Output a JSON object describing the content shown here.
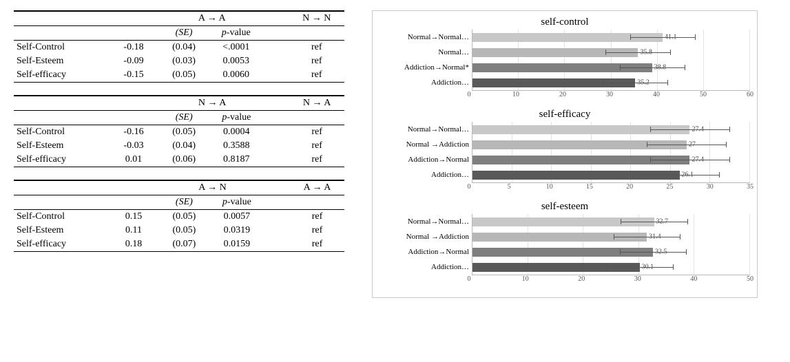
{
  "tables": [
    {
      "header_left": "A → A",
      "header_right": "N → N",
      "se_label": "(SE)",
      "p_label": "p-value",
      "ref_label": "ref",
      "rows": [
        {
          "name": "Self-Control",
          "coef": "-0.18",
          "se": "(0.04)",
          "p": "<.0001"
        },
        {
          "name": "Self-Esteem",
          "coef": "-0.09",
          "se": "(0.03)",
          "p": "0.0053"
        },
        {
          "name": "Self-efficacy",
          "coef": "-0.15",
          "se": "(0.05)",
          "p": "0.0060"
        }
      ]
    },
    {
      "header_left": "N → A",
      "header_right": "N → A",
      "se_label": "(SE)",
      "p_label": "p-value",
      "ref_label": "ref",
      "rows": [
        {
          "name": "Self-Control",
          "coef": "-0.16",
          "se": "(0.05)",
          "p": "0.0004"
        },
        {
          "name": "Self-Esteem",
          "coef": "-0.03",
          "se": "(0.04)",
          "p": "0.3588"
        },
        {
          "name": "Self-efficacy",
          "coef": " 0.01",
          "se": "(0.06)",
          "p": "0.8187"
        }
      ]
    },
    {
      "header_left": "A → N",
      "header_right": "A → A",
      "se_label": "(SE)",
      "p_label": "p-value",
      "ref_label": "ref",
      "rows": [
        {
          "name": "Self-Control",
          "coef": "0.15",
          "se": "(0.05)",
          "p": "0.0057"
        },
        {
          "name": "Self-Esteem",
          "coef": "0.11",
          "se": "(0.05)",
          "p": "0.0319"
        },
        {
          "name": "Self-efficacy",
          "coef": "0.18",
          "se": "(0.07)",
          "p": "0.0159"
        }
      ]
    }
  ],
  "charts": [
    {
      "title": "self-control",
      "xmax": 60,
      "xtick_step": 10,
      "err": 7,
      "categories": [
        "Normal→Normal…",
        "Normal…",
        "Addiction→Normal*",
        "Addiction…"
      ],
      "values": [
        41.1,
        35.8,
        38.8,
        35.2
      ],
      "colors": [
        "#c8c8c8",
        "#b7b7b7",
        "#7f7f7f",
        "#595959"
      ],
      "title_fontsize": 15,
      "label_fontsize": 11,
      "value_fontsize": 10
    },
    {
      "title": "self-efficacy",
      "xmax": 35,
      "xtick_step": 5,
      "err": 5,
      "categories": [
        "Normal→Normal…",
        "Normal →Addiction",
        "Addiction→Normal",
        "Addiction…"
      ],
      "values": [
        27.4,
        27,
        27.4,
        26.1
      ],
      "colors": [
        "#c8c8c8",
        "#b7b7b7",
        "#7f7f7f",
        "#595959"
      ],
      "title_fontsize": 15,
      "label_fontsize": 11,
      "value_fontsize": 10
    },
    {
      "title": "self-esteem",
      "xmax": 50,
      "xtick_step": 10,
      "err": 6,
      "categories": [
        "Normal→Normal…",
        "Normal →Addiction",
        "Addiction→Normal",
        "Addiction…"
      ],
      "values": [
        32.7,
        31.4,
        32.5,
        30.1
      ],
      "colors": [
        "#c8c8c8",
        "#b7b7b7",
        "#7f7f7f",
        "#595959"
      ],
      "title_fontsize": 15,
      "label_fontsize": 11,
      "value_fontsize": 10
    }
  ]
}
